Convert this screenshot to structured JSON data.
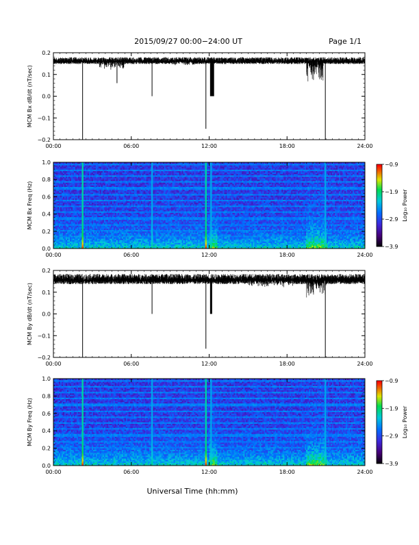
{
  "header": {
    "title": "2015/09/27  00:00−24:00 UT",
    "page": "Page 1/1"
  },
  "footer": {
    "xlabel": "Universal Time (hh:mm)"
  },
  "colors": {
    "axis": "#000000",
    "waveform": "#000000",
    "background": "#ffffff"
  },
  "chart_data": [
    {
      "type": "line",
      "ylabel": "MCM Bx dB/dt (nT/sec)",
      "xlim": [
        0,
        24
      ],
      "ylim": [
        -0.2,
        0.2
      ],
      "x_tick_labels": [
        "00:00",
        "06:00",
        "12:00",
        "18:00",
        "24:00"
      ],
      "y_tick_labels": [
        "0.2",
        "0.1",
        "0.0",
        "−0.1",
        "−0.2"
      ],
      "series": [
        {
          "baseline": 0.16,
          "noise_amplitude": 0.012,
          "spikes": [
            {
              "x": 2.25,
              "y": -0.2
            },
            {
              "x": 4.9,
              "y": 0.06
            },
            {
              "x": 7.6,
              "y": 0.0
            },
            {
              "x": 11.75,
              "y": -0.15
            },
            {
              "x": 12.15,
              "y": 0.0
            },
            {
              "x": 12.3,
              "y": 0.0
            },
            {
              "x": 20.95,
              "y": -0.2
            }
          ],
          "disturbed_intervals": [
            {
              "from": 3.5,
              "to": 5.5,
              "min": 0.12
            },
            {
              "from": 9.0,
              "to": 11.0,
              "min": 0.14
            },
            {
              "from": 19.5,
              "to": 20.8,
              "min": 0.05
            }
          ]
        }
      ]
    },
    {
      "type": "heatmap",
      "ylabel": "MCM Bx Freq (Hz)",
      "xlim": [
        0,
        24
      ],
      "ylim": [
        0,
        1.0
      ],
      "x_tick_labels": [
        "00:00",
        "06:00",
        "12:00",
        "18:00",
        "24:00"
      ],
      "y_tick_labels": [
        "1.0",
        "0.8",
        "0.6",
        "0.4",
        "0.2",
        "0.0"
      ],
      "colorbar": {
        "label": "Log₁₀ Power",
        "range": [
          -3.9,
          -0.9
        ],
        "tick_labels": [
          "−0.9",
          "−1.9",
          "−2.9",
          "−3.9"
        ]
      },
      "narrowband_lines_hz": [
        0.07,
        0.14,
        0.21,
        0.28,
        0.35,
        0.42,
        0.49,
        0.56,
        0.63,
        0.7,
        0.77,
        0.84,
        0.91,
        0.98
      ],
      "broadband_times_h": [
        2.25,
        7.6,
        11.75,
        12.15,
        20.95
      ],
      "enhanced_intervals_h": [
        [
          12.0,
          12.6
        ],
        [
          19.5,
          21.0
        ]
      ]
    },
    {
      "type": "line",
      "ylabel": "MCM By dB/dt (nT/sec)",
      "xlim": [
        0,
        24
      ],
      "ylim": [
        -0.2,
        0.2
      ],
      "x_tick_labels": [
        "00:00",
        "06:00",
        "12:00",
        "18:00",
        "24:00"
      ],
      "y_tick_labels": [
        "0.2",
        "0.1",
        "0.0",
        "−0.1",
        "−0.2"
      ],
      "series": [
        {
          "baseline": 0.155,
          "noise_amplitude": 0.018,
          "spikes": [
            {
              "x": 2.25,
              "y": -0.2
            },
            {
              "x": 7.6,
              "y": 0.0
            },
            {
              "x": 11.75,
              "y": -0.16
            },
            {
              "x": 12.15,
              "y": 0.0
            },
            {
              "x": 20.95,
              "y": -0.2
            }
          ],
          "disturbed_intervals": [
            {
              "from": 15.0,
              "to": 18.5,
              "min": 0.12
            },
            {
              "from": 19.5,
              "to": 21.0,
              "min": 0.07
            }
          ]
        }
      ]
    },
    {
      "type": "heatmap",
      "ylabel": "MCM By Freq (Hz)",
      "xlim": [
        0,
        24
      ],
      "ylim": [
        0,
        1.0
      ],
      "x_tick_labels": [
        "00:00",
        "06:00",
        "12:00",
        "18:00",
        "24:00"
      ],
      "y_tick_labels": [
        "1.0",
        "0.8",
        "0.6",
        "0.4",
        "0.2",
        "0.0"
      ],
      "colorbar": {
        "label": "Log₁₀ Power",
        "range": [
          -3.9,
          -0.9
        ],
        "tick_labels": [
          "−0.9",
          "−1.9",
          "−2.9",
          "−3.9"
        ]
      },
      "narrowband_lines_hz": [
        0.07,
        0.14,
        0.21,
        0.28,
        0.35,
        0.42,
        0.49,
        0.56,
        0.63,
        0.7,
        0.77,
        0.84,
        0.91,
        0.98
      ],
      "broadband_times_h": [
        2.25,
        7.6,
        11.75,
        12.15,
        20.95
      ],
      "enhanced_intervals_h": [
        [
          12.0,
          12.6
        ],
        [
          19.5,
          21.0
        ]
      ]
    }
  ]
}
